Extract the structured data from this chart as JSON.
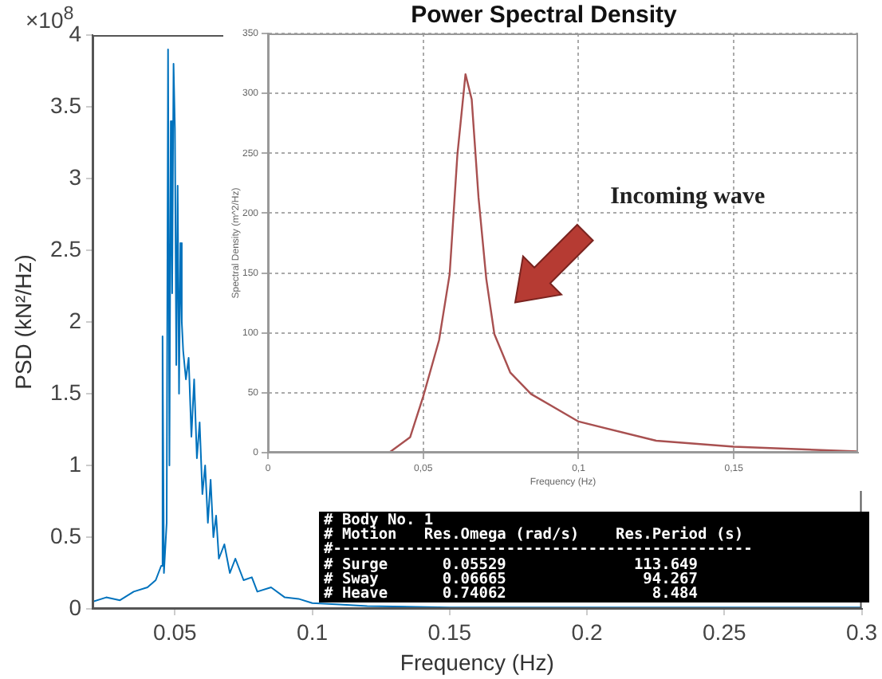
{
  "chart_data": [
    {
      "type": "line",
      "xlabel": "Frequency (Hz)",
      "ylabel": "PSD (kN²/Hz)",
      "color": "#0072bd",
      "marker": "none",
      "legend": false,
      "grid": false,
      "x": [
        0.02,
        0.025,
        0.03,
        0.035,
        0.04,
        0.043,
        0.045,
        0.0455,
        0.046,
        0.047,
        0.0475,
        0.048,
        0.0485,
        0.049,
        0.0495,
        0.05,
        0.0505,
        0.051,
        0.0515,
        0.052,
        0.0525,
        0.053,
        0.054,
        0.055,
        0.056,
        0.057,
        0.058,
        0.059,
        0.06,
        0.061,
        0.062,
        0.063,
        0.064,
        0.065,
        0.066,
        0.068,
        0.07,
        0.072,
        0.075,
        0.078,
        0.08,
        0.085,
        0.09,
        0.095,
        0.1,
        0.11,
        0.12,
        0.15,
        0.2,
        0.25,
        0.3
      ],
      "values": [
        0.05,
        0.08,
        0.06,
        0.12,
        0.15,
        0.2,
        0.3,
        1.9,
        0.25,
        0.6,
        3.9,
        1.0,
        3.4,
        2.2,
        3.8,
        3.35,
        1.7,
        2.95,
        1.5,
        2.55,
        2.0,
        1.8,
        1.6,
        1.75,
        1.2,
        1.6,
        1.05,
        1.3,
        0.8,
        1.0,
        0.6,
        0.9,
        0.5,
        0.65,
        0.35,
        0.45,
        0.25,
        0.35,
        0.2,
        0.22,
        0.12,
        0.15,
        0.08,
        0.07,
        0.04,
        0.03,
        0.02,
        0.01,
        0.01,
        0.01,
        0.01
      ],
      "xlim": [
        0.02,
        0.3
      ],
      "xticks": [
        0.05,
        0.1,
        0.15,
        0.2,
        0.25,
        0.3
      ],
      "ylim": [
        0,
        4
      ],
      "yticks": [
        0,
        0.5,
        1,
        1.5,
        2,
        2.5,
        3,
        3.5,
        4
      ],
      "annotations": [
        "×10$^{8}$",
        "# Body No. 1",
        "# Motion   Res.Omega (rad/s)    Res.Period (s)",
        "#----------------------------------------------",
        "# Surge      0.05529              113.649",
        "# Sway       0.06665               94.267",
        "# Heave      0.74062                8.484"
      ]
    },
    {
      "type": "line",
      "title": "Power Spectral Density",
      "xlabel": "Frequency (Hz)",
      "ylabel": "Spectral Density (m^2/Hz)",
      "color": "#a85050",
      "marker": "none",
      "legend": false,
      "grid": true,
      "x": [
        0.039,
        0.0458,
        0.05,
        0.0551,
        0.0585,
        0.061,
        0.0636,
        0.0656,
        0.0678,
        0.0703,
        0.0729,
        0.078,
        0.0847,
        0.1,
        0.125,
        0.15,
        0.19
      ],
      "values": [
        0,
        13,
        47,
        94,
        149,
        249,
        316,
        295,
        213,
        145,
        99,
        67,
        49,
        26,
        10,
        5,
        1
      ],
      "xlim": [
        0,
        0.19
      ],
      "xticks": [
        0,
        {
          "value": 0.05,
          "label": "0,05"
        },
        {
          "value": 0.1,
          "label": "0,1"
        },
        {
          "value": 0.15,
          "label": "0,15"
        }
      ],
      "ylim": [
        0,
        350
      ],
      "yticks": [
        0,
        50,
        100,
        150,
        200,
        250,
        300,
        350
      ],
      "annotations": [
        "Incoming wave"
      ]
    }
  ]
}
